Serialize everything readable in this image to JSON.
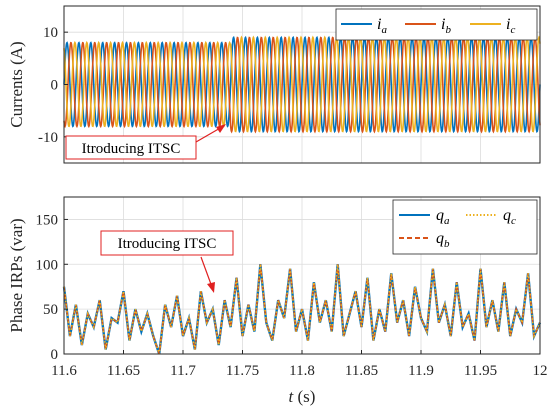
{
  "chart_data": [
    {
      "type": "line",
      "ylabel": "Currents (A)",
      "xlim": [
        11.6,
        12
      ],
      "ylim": [
        -15,
        15
      ],
      "yticks": [
        -10,
        0,
        10
      ],
      "grid": true,
      "legend_position": "top-right",
      "waveform": {
        "frequency_hz": 100,
        "amplitude_before": 8.0,
        "amplitude_after": 9.0,
        "change_time": 11.74,
        "phase_shift_deg": 120
      },
      "series": [
        {
          "name": "i",
          "subscript": "a",
          "color": "#0072BD",
          "phase_deg": 0
        },
        {
          "name": "i",
          "subscript": "b",
          "color": "#D95319",
          "phase_deg": -120
        },
        {
          "name": "i",
          "subscript": "c",
          "color": "#EDB120",
          "phase_deg": 120
        }
      ],
      "annotation": {
        "text": "Itroducing ITSC",
        "arrow_to": [
          11.735,
          -7.5
        ]
      }
    },
    {
      "type": "line",
      "xlabel": "t (s)",
      "ylabel": "Phase IRPs (var)",
      "xlim": [
        11.6,
        12
      ],
      "ylim": [
        0,
        175
      ],
      "yticks": [
        0,
        50,
        100,
        150
      ],
      "xticks": [
        11.6,
        11.65,
        11.7,
        11.75,
        11.8,
        11.85,
        11.9,
        11.95,
        12
      ],
      "xticklabels": [
        "11.6",
        "11.65",
        "11.7",
        "11.75",
        "11.8",
        "11.85",
        "11.9",
        "11.95",
        "12"
      ],
      "grid": true,
      "legend_position": "top-right",
      "series": [
        {
          "name": "q",
          "subscript": "a",
          "color": "#0072BD",
          "style": "solid"
        },
        {
          "name": "q",
          "subscript": "b",
          "color": "#D95319",
          "style": "dashed"
        },
        {
          "name": "q",
          "subscript": "c",
          "color": "#EDB120",
          "style": "dotted"
        }
      ],
      "sample_points": {
        "x": [
          11.6,
          11.605,
          11.61,
          11.615,
          11.62,
          11.625,
          11.63,
          11.635,
          11.64,
          11.645,
          11.65,
          11.655,
          11.66,
          11.665,
          11.67,
          11.675,
          11.68,
          11.685,
          11.69,
          11.695,
          11.7,
          11.705,
          11.71,
          11.715,
          11.72,
          11.725,
          11.73,
          11.735,
          11.74,
          11.745,
          11.75,
          11.755,
          11.76,
          11.765,
          11.77,
          11.775,
          11.78,
          11.785,
          11.79,
          11.795,
          11.8,
          11.805,
          11.81,
          11.815,
          11.82,
          11.825,
          11.83,
          11.835,
          11.84,
          11.845,
          11.85,
          11.855,
          11.86,
          11.865,
          11.87,
          11.875,
          11.88,
          11.885,
          11.89,
          11.895,
          11.9,
          11.905,
          11.91,
          11.915,
          11.92,
          11.925,
          11.93,
          11.935,
          11.94,
          11.945,
          11.95,
          11.955,
          11.96,
          11.965,
          11.97,
          11.975,
          11.98,
          11.985,
          11.99,
          11.995,
          12.0
        ],
        "y": [
          75,
          20,
          55,
          10,
          45,
          30,
          60,
          5,
          40,
          35,
          70,
          15,
          50,
          25,
          45,
          20,
          0,
          55,
          30,
          65,
          20,
          40,
          5,
          70,
          35,
          50,
          10,
          60,
          30,
          85,
          20,
          55,
          25,
          100,
          35,
          15,
          60,
          40,
          95,
          25,
          50,
          15,
          80,
          35,
          60,
          25,
          100,
          20,
          45,
          70,
          30,
          85,
          15,
          50,
          25,
          90,
          35,
          60,
          20,
          75,
          40,
          25,
          95,
          35,
          55,
          20,
          80,
          30,
          45,
          15,
          95,
          30,
          60,
          25,
          80,
          20,
          50,
          35,
          90,
          20,
          35
        ]
      },
      "annotation": {
        "text": "Itroducing ITSC",
        "arrow_to": [
          11.733,
          58
        ]
      }
    }
  ]
}
